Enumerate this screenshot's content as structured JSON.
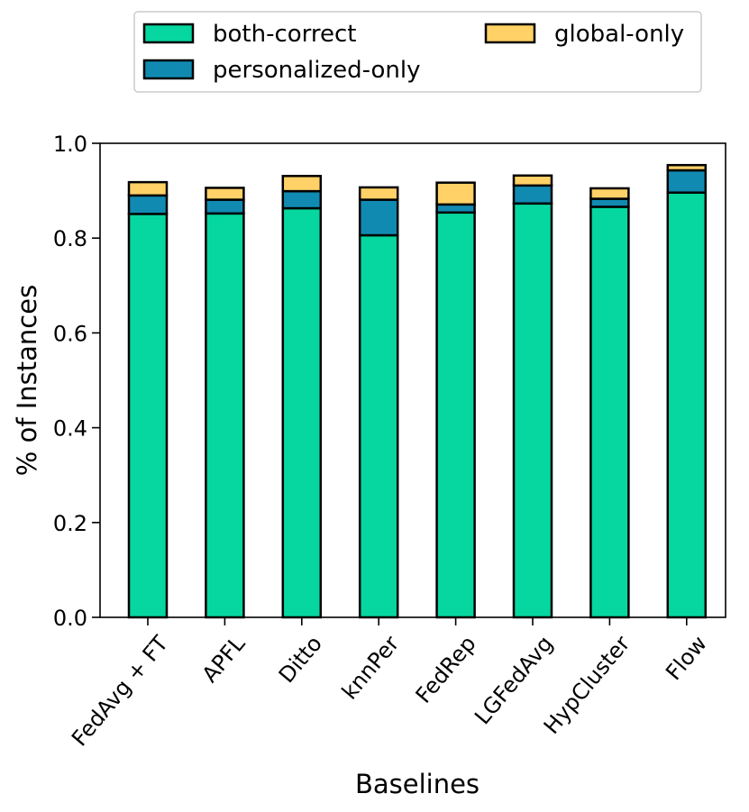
{
  "chart_data": {
    "type": "bar",
    "stacked": true,
    "title": "",
    "xlabel": "Baselines",
    "ylabel": "% of Instances",
    "ylim": [
      0,
      1.0
    ],
    "yticks": [
      0.0,
      0.2,
      0.4,
      0.6,
      0.8,
      1.0
    ],
    "ytick_labels": [
      "0.0",
      "0.2",
      "0.4",
      "0.6",
      "0.8",
      "1.0"
    ],
    "grid": false,
    "legend_position": "top-center",
    "categories": [
      "FedAvg + FT",
      "APFL",
      "Ditto",
      "knnPer",
      "FedRep",
      "LGFedAvg",
      "HypCluster",
      "Flow"
    ],
    "series": [
      {
        "name": "both-correct",
        "color": "#06D6A0",
        "values": [
          0.851,
          0.852,
          0.863,
          0.806,
          0.854,
          0.873,
          0.866,
          0.896
        ]
      },
      {
        "name": "personalized-only",
        "color": "#118AB2",
        "values": [
          0.039,
          0.029,
          0.036,
          0.075,
          0.017,
          0.038,
          0.017,
          0.047
        ]
      },
      {
        "name": "global-only",
        "color": "#FFD166",
        "values": [
          0.028,
          0.025,
          0.032,
          0.026,
          0.046,
          0.021,
          0.022,
          0.011
        ]
      }
    ]
  }
}
